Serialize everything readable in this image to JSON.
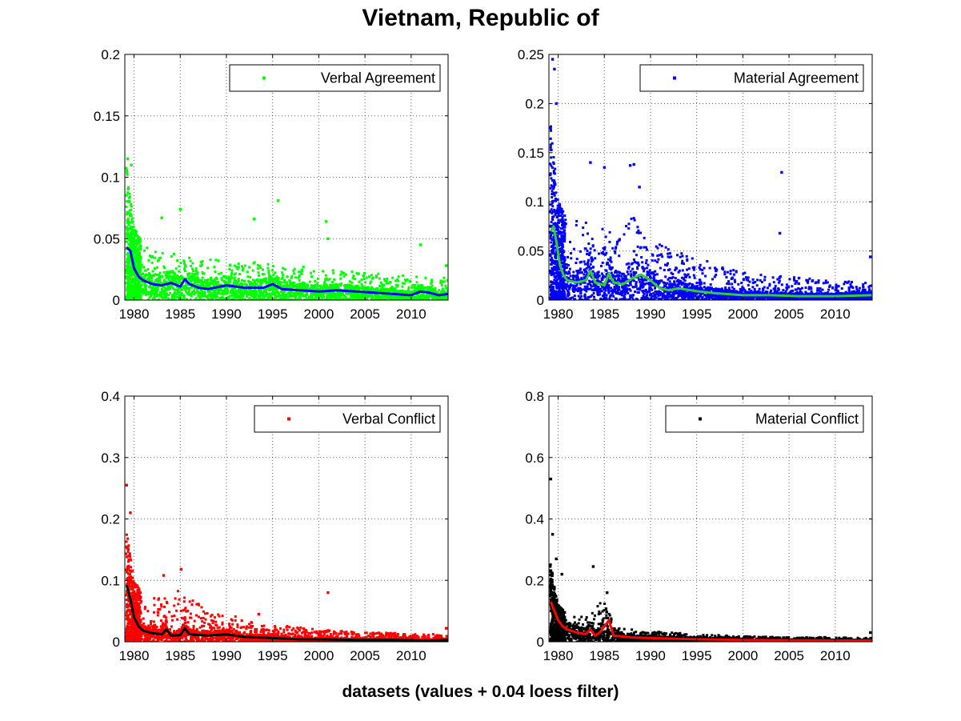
{
  "figure": {
    "title": "Vietnam, Republic of",
    "caption": "datasets (values + 0.04 loess filter)"
  },
  "chart_data": [
    {
      "type": "scatter",
      "title": "",
      "legend": "Verbal Agreement",
      "legend_position": "top-right",
      "point_color": "#00ff00",
      "line_color": "#0000ff",
      "xlim": [
        1979,
        2014
      ],
      "ylim": [
        0,
        0.2
      ],
      "xticks": [
        1980,
        1985,
        1990,
        1995,
        2000,
        2005,
        2010
      ],
      "xtick_labels": [
        "1980",
        "1985",
        "1990",
        "1995",
        "2000",
        "2005",
        "2010"
      ],
      "yticks": [
        0,
        0.05,
        0.1,
        0.15,
        0.2
      ],
      "ytick_labels": [
        "0",
        "0.05",
        "0.1",
        "0.15",
        "0.2"
      ],
      "grid": true,
      "scatter_profile": {
        "x": [
          1979,
          1980,
          1981,
          1982,
          1984,
          1986,
          1990,
          1995,
          2000,
          2005,
          2010,
          2014
        ],
        "upper": [
          0.12,
          0.06,
          0.045,
          0.04,
          0.038,
          0.036,
          0.032,
          0.03,
          0.026,
          0.022,
          0.02,
          0.018
        ]
      },
      "outliers": [
        [
          1979.3,
          0.115
        ],
        [
          1979.7,
          0.11
        ],
        [
          1983,
          0.067
        ],
        [
          1985,
          0.074
        ],
        [
          1993,
          0.066
        ],
        [
          1995.6,
          0.081
        ],
        [
          2000.8,
          0.064
        ],
        [
          2001,
          0.05
        ],
        [
          2011,
          0.045
        ],
        [
          2013.8,
          0.028
        ]
      ],
      "loess": {
        "x": [
          1979.2,
          1979.6,
          1980,
          1980.5,
          1981,
          1982,
          1983,
          1984,
          1985,
          1985.5,
          1986,
          1987,
          1988,
          1990,
          1992,
          1994,
          1995,
          1996,
          1998,
          2000,
          2002,
          2004,
          2006,
          2008,
          2010,
          2011,
          2012,
          2013,
          2014
        ],
        "y": [
          0.043,
          0.04,
          0.026,
          0.019,
          0.016,
          0.013,
          0.012,
          0.014,
          0.011,
          0.017,
          0.013,
          0.01,
          0.009,
          0.012,
          0.01,
          0.01,
          0.013,
          0.009,
          0.008,
          0.007,
          0.008,
          0.007,
          0.006,
          0.005,
          0.004,
          0.007,
          0.006,
          0.004,
          0.005
        ]
      }
    },
    {
      "type": "scatter",
      "title": "",
      "legend": "Material Agreement",
      "legend_position": "top-right",
      "point_color": "#0000ff",
      "line_color": "#33cc33",
      "xlim": [
        1979,
        2014
      ],
      "ylim": [
        0,
        0.25
      ],
      "xticks": [
        1980,
        1985,
        1990,
        1995,
        2000,
        2005,
        2010
      ],
      "xtick_labels": [
        "1980",
        "1985",
        "1990",
        "1995",
        "2000",
        "2005",
        "2010"
      ],
      "yticks": [
        0,
        0.05,
        0.1,
        0.15,
        0.2,
        0.25
      ],
      "ytick_labels": [
        "0",
        "0.05",
        "0.1",
        "0.15",
        "0.2",
        "0.25"
      ],
      "grid": true,
      "scatter_profile": {
        "x": [
          1979,
          1979.5,
          1980,
          1981,
          1983,
          1986,
          1988,
          1990,
          1993,
          1996,
          2000,
          2005,
          2010,
          2014
        ],
        "upper": [
          0.2,
          0.15,
          0.1,
          0.085,
          0.08,
          0.07,
          0.09,
          0.06,
          0.05,
          0.04,
          0.03,
          0.025,
          0.02,
          0.018
        ]
      },
      "outliers": [
        [
          1979.4,
          0.245
        ],
        [
          1979.6,
          0.235
        ],
        [
          1979.8,
          0.2
        ],
        [
          1983.5,
          0.14
        ],
        [
          1985,
          0.135
        ],
        [
          1987.8,
          0.137
        ],
        [
          1988.2,
          0.138
        ],
        [
          1988.8,
          0.115
        ],
        [
          2004.2,
          0.13
        ],
        [
          2004,
          0.068
        ],
        [
          2013.8,
          0.044
        ]
      ],
      "loess": {
        "x": [
          1979.2,
          1979.5,
          1979.8,
          1980.2,
          1980.6,
          1981,
          1982,
          1983,
          1983.5,
          1984,
          1985,
          1985.5,
          1986,
          1987,
          1988,
          1989,
          1990,
          1991,
          1992,
          1993,
          1995,
          1997,
          2000,
          2003,
          2006,
          2010,
          2014
        ],
        "y": [
          0.07,
          0.075,
          0.06,
          0.035,
          0.025,
          0.02,
          0.018,
          0.02,
          0.03,
          0.018,
          0.015,
          0.027,
          0.018,
          0.016,
          0.022,
          0.026,
          0.02,
          0.012,
          0.01,
          0.012,
          0.009,
          0.007,
          0.005,
          0.005,
          0.004,
          0.004,
          0.005
        ]
      }
    },
    {
      "type": "scatter",
      "title": "",
      "legend": "Verbal Conflict",
      "legend_position": "top-right",
      "point_color": "#ff0000",
      "line_color": "#000000",
      "xlim": [
        1979,
        2014
      ],
      "ylim": [
        0,
        0.4
      ],
      "xticks": [
        1980,
        1985,
        1990,
        1995,
        2000,
        2005,
        2010
      ],
      "xtick_labels": [
        "1980",
        "1985",
        "1990",
        "1995",
        "2000",
        "2005",
        "2010"
      ],
      "yticks": [
        0,
        0.1,
        0.2,
        0.3,
        0.4
      ],
      "ytick_labels": [
        "0",
        "0.1",
        "0.2",
        "0.3",
        "0.4"
      ],
      "grid": true,
      "scatter_profile": {
        "x": [
          1979,
          1979.5,
          1980,
          1981,
          1983,
          1985,
          1988,
          1990,
          1994,
          2000,
          2005,
          2010,
          2014
        ],
        "upper": [
          0.2,
          0.15,
          0.1,
          0.075,
          0.07,
          0.085,
          0.05,
          0.045,
          0.03,
          0.02,
          0.015,
          0.014,
          0.012
        ]
      },
      "outliers": [
        [
          1979.2,
          0.255
        ],
        [
          1979.6,
          0.21
        ],
        [
          1983.2,
          0.108
        ],
        [
          1985.1,
          0.118
        ],
        [
          1993.5,
          0.045
        ],
        [
          2001,
          0.08
        ],
        [
          2013.8,
          0.022
        ]
      ],
      "loess": {
        "x": [
          1979.2,
          1979.6,
          1980,
          1980.5,
          1981,
          1982,
          1983,
          1983.5,
          1984,
          1985,
          1985.5,
          1986,
          1988,
          1990,
          1992,
          1995,
          1998,
          2000,
          2004,
          2008,
          2012,
          2014
        ],
        "y": [
          0.092,
          0.07,
          0.04,
          0.025,
          0.018,
          0.014,
          0.012,
          0.02,
          0.01,
          0.011,
          0.022,
          0.012,
          0.01,
          0.012,
          0.008,
          0.006,
          0.004,
          0.004,
          0.003,
          0.003,
          0.002,
          0.003
        ]
      }
    },
    {
      "type": "scatter",
      "title": "",
      "legend": "Material Conflict",
      "legend_position": "top-right",
      "point_color": "#000000",
      "line_color": "#ff0000",
      "xlim": [
        1979,
        2014
      ],
      "ylim": [
        0,
        0.8
      ],
      "xticks": [
        1980,
        1985,
        1990,
        1995,
        2000,
        2005,
        2010
      ],
      "xtick_labels": [
        "1980",
        "1985",
        "1990",
        "1995",
        "2000",
        "2005",
        "2010"
      ],
      "yticks": [
        0,
        0.2,
        0.4,
        0.6,
        0.8
      ],
      "ytick_labels": [
        "0",
        "0.2",
        "0.4",
        "0.6",
        "0.8"
      ],
      "grid": true,
      "scatter_profile": {
        "x": [
          1979,
          1979.5,
          1980,
          1981,
          1983,
          1985,
          1986,
          1988,
          1990,
          1995,
          2000,
          2005,
          2010,
          2014
        ],
        "upper": [
          0.3,
          0.2,
          0.12,
          0.09,
          0.09,
          0.14,
          0.05,
          0.04,
          0.035,
          0.025,
          0.018,
          0.015,
          0.015,
          0.012
        ]
      },
      "outliers": [
        [
          1979.2,
          0.53
        ],
        [
          1979.4,
          0.35
        ],
        [
          1979.8,
          0.27
        ],
        [
          1980.4,
          0.22
        ],
        [
          1983.8,
          0.245
        ],
        [
          1985.3,
          0.16
        ],
        [
          2013.8,
          0.03
        ]
      ],
      "loess": {
        "x": [
          1979.2,
          1979.6,
          1980,
          1980.5,
          1981,
          1982,
          1983,
          1983.5,
          1984,
          1984.5,
          1985,
          1985.5,
          1986,
          1988,
          1990,
          1995,
          2000,
          2005,
          2010,
          2014
        ],
        "y": [
          0.13,
          0.1,
          0.07,
          0.05,
          0.04,
          0.03,
          0.025,
          0.04,
          0.02,
          0.03,
          0.05,
          0.07,
          0.02,
          0.014,
          0.012,
          0.008,
          0.006,
          0.005,
          0.004,
          0.004
        ]
      }
    }
  ]
}
